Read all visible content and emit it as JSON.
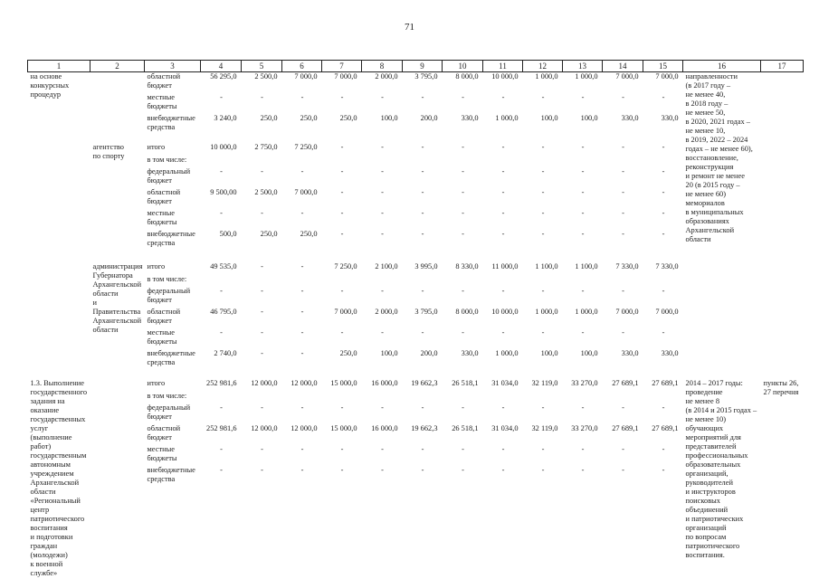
{
  "page_number": "71",
  "table": {
    "header": [
      "1",
      "2",
      "3",
      "4",
      "5",
      "6",
      "7",
      "8",
      "9",
      "10",
      "11",
      "12",
      "13",
      "14",
      "15",
      "16",
      "17"
    ],
    "sections": [
      {
        "activity": "на основе\nконкурсных\nпроцедур",
        "executor": "",
        "targets": "направленности\n(в 2017 году –\nне менее 40,\nв 2018 году –\nне менее 50,\nв 2020, 2021 годах –\nне менее 10,\nв 2019, 2022 – 2024\nгодах – не менее 60),\nвосстановление,\nреконструкция\nи ремонт не менее\n20 (в 2015 году –\nне менее 60)\nмемориалов\nв муниципальных\nобразованиях\nАрхангельской\nобласти",
        "reference": "",
        "rows": [
          {
            "label": "областной\nбюджет",
            "values": [
              "56 295,0",
              "2 500,0",
              "7 000,0",
              "7 000,0",
              "2 000,0",
              "3 795,0",
              "8 000,0",
              "10 000,0",
              "1 000,0",
              "1 000,0",
              "7 000,0",
              "7 000,0"
            ]
          },
          {
            "label": "местные\nбюджеты",
            "values": [
              "-",
              "-",
              "-",
              "-",
              "-",
              "-",
              "-",
              "-",
              "-",
              "-",
              "-",
              "-"
            ]
          },
          {
            "label": "внебюджетные\nсредства",
            "values": [
              "3 240,0",
              "250,0",
              "250,0",
              "250,0",
              "100,0",
              "200,0",
              "330,0",
              "1 000,0",
              "100,0",
              "100,0",
              "330,0",
              "330,0"
            ]
          }
        ]
      },
      {
        "activity": "",
        "executor": "агентство\nпо спорту",
        "targets": "",
        "reference": "",
        "rows": [
          {
            "label": "итого",
            "sublabel": "в том числе:",
            "values": [
              "10 000,0",
              "2 750,0",
              "7 250,0",
              "-",
              "-",
              "-",
              "-",
              "-",
              "-",
              "-",
              "-",
              "-"
            ]
          },
          {
            "label": "федеральный\nбюджет",
            "values": [
              "-",
              "-",
              "-",
              "-",
              "-",
              "-",
              "-",
              "-",
              "-",
              "-",
              "-",
              "-"
            ]
          },
          {
            "label": "областной\nбюджет",
            "values": [
              "9 500,00",
              "2 500,0",
              "7 000,0",
              "-",
              "-",
              "-",
              "-",
              "-",
              "-",
              "-",
              "-",
              "-"
            ]
          },
          {
            "label": "местные\nбюджеты",
            "values": [
              "-",
              "-",
              "-",
              "-",
              "-",
              "-",
              "-",
              "-",
              "-",
              "-",
              "-",
              "-"
            ]
          },
          {
            "label": "внебюджетные\nсредства",
            "values": [
              "500,0",
              "250,0",
              "250,0",
              "-",
              "-",
              "-",
              "-",
              "-",
              "-",
              "-",
              "-",
              "-"
            ]
          }
        ]
      },
      {
        "activity": "",
        "executor": "администрация\nГубернатора\nАрхангельской\nобласти\nи Правительства\nАрхангельской\nобласти",
        "targets": "",
        "reference": "",
        "rows": [
          {
            "label": "итого",
            "sublabel": "в том числе:",
            "values": [
              "49 535,0",
              "-",
              "-",
              "7 250,0",
              "2 100,0",
              "3 995,0",
              "8 330,0",
              "11 000,0",
              "1 100,0",
              "1 100,0",
              "7 330,0",
              "7 330,0"
            ]
          },
          {
            "label": "федеральный\nбюджет",
            "values": [
              "-",
              "-",
              "-",
              "-",
              "-",
              "-",
              "-",
              "-",
              "-",
              "-",
              "-",
              "-"
            ]
          },
          {
            "label": "областной\nбюджет",
            "values": [
              "46 795,0",
              "-",
              "-",
              "7 000,0",
              "2 000,0",
              "3 795,0",
              "8 000,0",
              "10 000,0",
              "1 000,0",
              "1 000,0",
              "7 000,0",
              "7 000,0"
            ]
          },
          {
            "label": "местные\nбюджеты",
            "values": [
              "-",
              "-",
              "-",
              "-",
              "-",
              "-",
              "-",
              "-",
              "-",
              "-",
              "-",
              "-"
            ]
          },
          {
            "label": "внебюджетные\nсредства",
            "values": [
              "2 740,0",
              "-",
              "-",
              "250,0",
              "100,0",
              "200,0",
              "330,0",
              "1 000,0",
              "100,0",
              "100,0",
              "330,0",
              "330,0"
            ]
          }
        ]
      },
      {
        "activity": "1.3. Выполнение\nгосударственного\nзадания на оказание\nгосударственных\nуслуг (выполнение\nработ)\nгосударственным\nавтономным\nучреждением\nАрхангельской\nобласти\n«Региональный\nцентр\nпатриотического\nвоспитания\nи подготовки\nграждан\n(молодежи)\nк военной службе»",
        "executor": "",
        "targets": "2014 – 2017 годы:\nпроведение\nне менее 8\n(в 2014 и 2015 годах –\nне менее 10)\nобучающих\nмероприятий для\nпредставителей\nпрофессиональных\nобразовательных\nорганизаций,\nруководителей\nи инструкторов\nпоисковых\nобъединений\nи патриотических\nорганизаций\nпо вопросам\nпатриотического\nвоспитания.",
        "reference": "пункты 26,\n27 перечня",
        "rows": [
          {
            "label": "итого",
            "sublabel": "в том числе:",
            "values": [
              "252 981,6",
              "12 000,0",
              "12 000,0",
              "15 000,0",
              "16 000,0",
              "19 662,3",
              "26 518,1",
              "31 034,0",
              "32 119,0",
              "33 270,0",
              "27 689,1",
              "27 689,1"
            ]
          },
          {
            "label": "федеральный\nбюджет",
            "values": [
              "-",
              "-",
              "-",
              "-",
              "-",
              "-",
              "-",
              "-",
              "-",
              "-",
              "-",
              "-"
            ]
          },
          {
            "label": "областной\nбюджет",
            "values": [
              "252 981,6",
              "12 000,0",
              "12 000,0",
              "15 000,0",
              "16 000,0",
              "19 662,3",
              "26 518,1",
              "31 034,0",
              "32 119,0",
              "33 270,0",
              "27 689,1",
              "27 689,1"
            ]
          },
          {
            "label": "местные\nбюджеты",
            "values": [
              "-",
              "-",
              "-",
              "-",
              "-",
              "-",
              "-",
              "-",
              "-",
              "-",
              "-",
              "-"
            ]
          },
          {
            "label": "внебюджетные\nсредства",
            "values": [
              "-",
              "-",
              "-",
              "-",
              "-",
              "-",
              "-",
              "-",
              "-",
              "-",
              "-",
              "-"
            ]
          }
        ]
      }
    ]
  }
}
